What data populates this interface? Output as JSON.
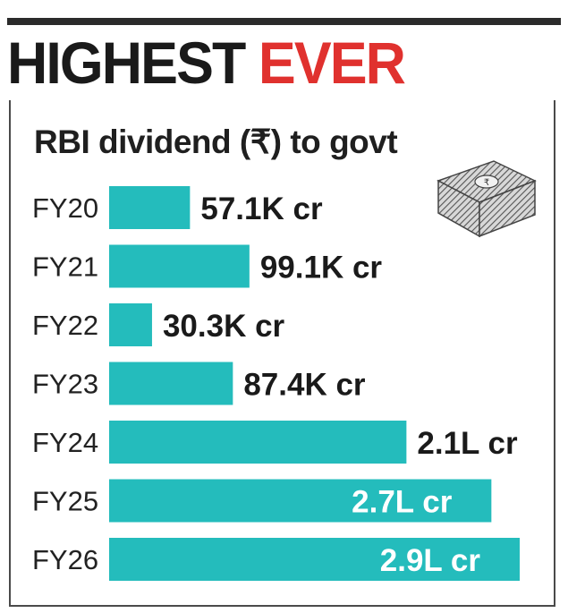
{
  "headline": {
    "part1": "HIGHEST",
    "part2": "EVER"
  },
  "colors": {
    "bar": "#24bcbc",
    "accent": "#e0312e",
    "text": "#1a1a1a"
  },
  "money_icon": "banknote-bundle-icon",
  "chart_data": {
    "type": "bar",
    "orientation": "horizontal",
    "title": "RBI dividend (₹) to govt",
    "unit": "₹ crore",
    "categories": [
      "FY20",
      "FY21",
      "FY22",
      "FY23",
      "FY24",
      "FY25",
      "FY26"
    ],
    "values": [
      57100,
      99100,
      30300,
      87400,
      210000,
      270000,
      290000
    ],
    "labels": [
      "57.1K cr",
      "99.1K cr",
      "30.3K cr",
      "87.4K cr",
      "2.1L cr",
      "2.7L cr",
      "2.9L cr"
    ],
    "label_inside": [
      false,
      false,
      false,
      false,
      false,
      true,
      true
    ],
    "grid": false,
    "legend": "none"
  }
}
